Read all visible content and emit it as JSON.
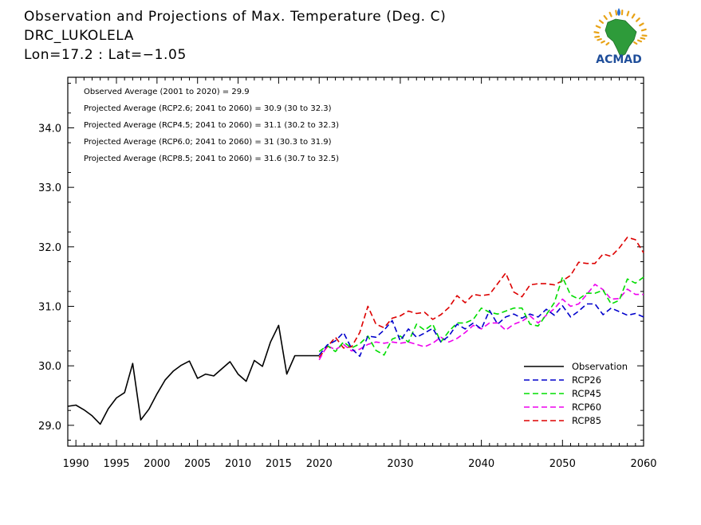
{
  "title": {
    "line1": "Observation and Projections of Max. Temperature (Deg. C)",
    "line2": "DRC_LUKOLELA",
    "line3": "Lon=17.2 : Lat=−1.05"
  },
  "logo": {
    "text": "ACMAD"
  },
  "annotations": [
    "Observed Average (2001 to 2020) = 29.9",
    "Projected Average (RCP2.6; 2041 to 2060) = 30.9 (30 to 32.3)",
    "Projected Average (RCP4.5; 2041 to 2060) = 31.1 (30.2 to 32.3)",
    "Projected Average (RCP6.0; 2041 to 2060) = 31 (30.3 to 31.9)",
    "Projected Average (RCP8.5; 2041 to 2060) = 31.6 (30.7 to 32.5)"
  ],
  "colors": {
    "observation": "#000000",
    "rcp26": "#0000cc",
    "rcp45": "#00dd00",
    "rcp60": "#ee00ee",
    "rcp85": "#dd0000"
  },
  "chart_data": {
    "type": "line",
    "xlim": [
      1989,
      2060
    ],
    "ylim": [
      28.65,
      34.85
    ],
    "x_ticks_left": [
      1990,
      1995,
      2000,
      2005,
      2010,
      2015,
      2020
    ],
    "x_ticks_right": [
      2030,
      2040,
      2050,
      2060
    ],
    "y_ticks": [
      29.0,
      30.0,
      31.0,
      32.0,
      33.0,
      34.0
    ],
    "y_tick_labels": [
      "29.0",
      "30.0",
      "31.0",
      "32.0",
      "33.0",
      "34.0"
    ],
    "legend_position": "bottom-right",
    "series": [
      {
        "name": "Observation",
        "key": "observation",
        "dash": "solid",
        "x": [
          1989,
          1990,
          1991,
          1992,
          1993,
          1994,
          1995,
          1996,
          1997,
          1998,
          1999,
          2000,
          2001,
          2002,
          2003,
          2004,
          2005,
          2006,
          2007,
          2008,
          2009,
          2010,
          2011,
          2012,
          2013,
          2014,
          2015,
          2016,
          2017,
          2018,
          2019,
          2020
        ],
        "y": [
          29.32,
          29.34,
          29.26,
          29.16,
          29.02,
          29.28,
          29.46,
          29.55,
          30.04,
          29.09,
          29.27,
          29.53,
          29.76,
          29.91,
          30.01,
          30.08,
          29.79,
          29.86,
          29.83,
          29.95,
          30.07,
          29.86,
          29.74,
          30.09,
          29.99,
          30.4,
          30.68,
          29.86,
          30.17,
          30.17,
          30.17,
          30.17
        ]
      },
      {
        "name": "RCP26",
        "key": "rcp26",
        "dash": "dashed",
        "x": [
          2020,
          2021,
          2022,
          2023,
          2024,
          2025,
          2026,
          2027,
          2028,
          2029,
          2030,
          2031,
          2032,
          2033,
          2034,
          2035,
          2036,
          2037,
          2038,
          2039,
          2040,
          2041,
          2042,
          2043,
          2044,
          2045,
          2046,
          2047,
          2048,
          2049,
          2050,
          2051,
          2052,
          2053,
          2054,
          2055,
          2056,
          2057,
          2058,
          2059,
          2060
        ],
        "y": [
          30.18,
          30.35,
          30.42,
          30.56,
          30.29,
          30.16,
          30.5,
          30.48,
          30.6,
          30.76,
          30.42,
          30.62,
          30.48,
          30.55,
          30.63,
          30.4,
          30.5,
          30.7,
          30.62,
          30.72,
          30.62,
          30.93,
          30.7,
          30.82,
          30.87,
          30.8,
          30.87,
          30.82,
          30.95,
          30.85,
          31.01,
          30.82,
          30.92,
          31.04,
          31.04,
          30.86,
          30.97,
          30.91,
          30.85,
          30.88,
          30.82
        ]
      },
      {
        "name": "RCP45",
        "key": "rcp45",
        "dash": "dashed",
        "x": [
          2020,
          2021,
          2022,
          2023,
          2024,
          2025,
          2026,
          2027,
          2028,
          2029,
          2030,
          2031,
          2032,
          2033,
          2034,
          2035,
          2036,
          2037,
          2038,
          2039,
          2040,
          2041,
          2042,
          2043,
          2044,
          2045,
          2046,
          2047,
          2048,
          2049,
          2050,
          2051,
          2052,
          2053,
          2054,
          2055,
          2056,
          2057,
          2058,
          2059,
          2060
        ],
        "y": [
          30.24,
          30.34,
          30.24,
          30.4,
          30.3,
          30.37,
          30.5,
          30.26,
          30.18,
          30.45,
          30.5,
          30.4,
          30.7,
          30.6,
          30.7,
          30.4,
          30.58,
          30.72,
          30.72,
          30.78,
          30.97,
          30.9,
          30.87,
          30.92,
          30.97,
          30.97,
          30.7,
          30.67,
          30.86,
          31.06,
          31.49,
          31.19,
          31.12,
          31.22,
          31.22,
          31.27,
          31.04,
          31.1,
          31.46,
          31.39,
          31.49
        ]
      },
      {
        "name": "RCP60",
        "key": "rcp60",
        "dash": "dashed",
        "x": [
          2020,
          2021,
          2022,
          2023,
          2024,
          2025,
          2026,
          2027,
          2028,
          2029,
          2030,
          2031,
          2032,
          2033,
          2034,
          2035,
          2036,
          2037,
          2038,
          2039,
          2040,
          2041,
          2042,
          2043,
          2044,
          2045,
          2046,
          2047,
          2048,
          2049,
          2050,
          2051,
          2052,
          2053,
          2054,
          2055,
          2056,
          2057,
          2058,
          2059,
          2060
        ],
        "y": [
          30.1,
          30.34,
          30.27,
          30.36,
          30.25,
          30.28,
          30.36,
          30.4,
          30.38,
          30.4,
          30.38,
          30.4,
          30.36,
          30.32,
          30.38,
          30.48,
          30.4,
          30.46,
          30.56,
          30.68,
          30.62,
          30.72,
          30.72,
          30.6,
          30.7,
          30.75,
          30.84,
          30.72,
          30.85,
          30.96,
          31.12,
          31.0,
          31.04,
          31.2,
          31.37,
          31.28,
          31.12,
          31.13,
          31.29,
          31.2,
          31.2
        ]
      },
      {
        "name": "RCP85",
        "key": "rcp85",
        "dash": "dashed",
        "x": [
          2020,
          2021,
          2022,
          2023,
          2024,
          2025,
          2026,
          2027,
          2028,
          2029,
          2030,
          2031,
          2032,
          2033,
          2034,
          2035,
          2036,
          2037,
          2038,
          2039,
          2040,
          2041,
          2042,
          2043,
          2044,
          2045,
          2046,
          2047,
          2048,
          2049,
          2050,
          2051,
          2052,
          2053,
          2054,
          2055,
          2056,
          2057,
          2058,
          2059,
          2060
        ],
        "y": [
          30.14,
          30.32,
          30.48,
          30.3,
          30.32,
          30.56,
          31.0,
          30.7,
          30.64,
          30.8,
          30.84,
          30.92,
          30.88,
          30.9,
          30.78,
          30.86,
          30.98,
          31.18,
          31.06,
          31.2,
          31.18,
          31.2,
          31.38,
          31.56,
          31.24,
          31.16,
          31.36,
          31.38,
          31.38,
          31.36,
          31.43,
          31.52,
          31.74,
          31.72,
          31.72,
          31.88,
          31.84,
          31.98,
          32.16,
          32.12,
          31.9
        ]
      }
    ]
  }
}
